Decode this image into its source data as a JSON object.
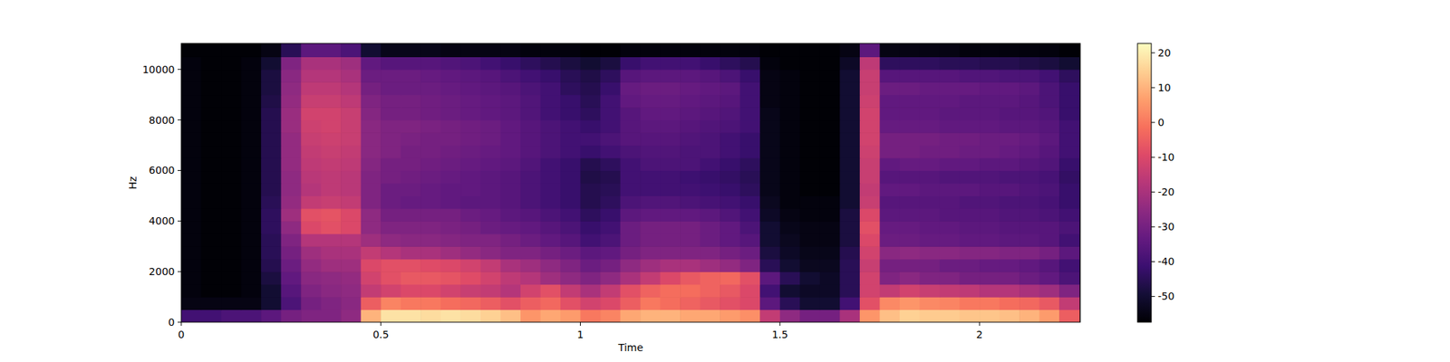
{
  "chart_data": {
    "type": "heatmap",
    "x_label": "Time",
    "y_label": "Hz",
    "xlim": [
      0,
      2.2524
    ],
    "ylim": [
      0,
      11025
    ],
    "xticks": [
      0,
      0.5,
      1,
      1.5,
      2
    ],
    "yticks": [
      0,
      2000,
      4000,
      6000,
      8000,
      10000
    ],
    "colorbar_range": [
      -57.4,
      22.7
    ],
    "colorbar_ticks": [
      -50,
      -40,
      -30,
      -20,
      -10,
      0,
      10,
      20
    ],
    "x_edges": [
      0,
      0.05,
      0.1,
      0.15,
      0.2,
      0.25,
      0.3,
      0.35,
      0.4,
      0.45,
      0.5,
      0.55,
      0.6,
      0.65,
      0.7,
      0.75,
      0.8,
      0.85,
      0.9,
      0.95,
      1,
      1.05,
      1.1,
      1.15,
      1.2,
      1.25,
      1.3,
      1.35,
      1.4,
      1.45,
      1.5,
      1.55,
      1.6,
      1.65,
      1.7,
      1.75,
      1.8,
      1.85,
      1.9,
      1.95,
      2,
      2.05,
      2.1,
      2.15,
      2.2,
      2.25
    ],
    "y_edges": [
      0,
      500,
      1000,
      1500,
      2000,
      2500,
      3000,
      3500,
      4000,
      4500,
      5000,
      5500,
      6000,
      6500,
      7000,
      7500,
      8000,
      8500,
      9000,
      9500,
      10000,
      10500,
      11025
    ],
    "cells": [
      [
        -40,
        -40,
        -38,
        -38,
        -35,
        -30,
        -28,
        -28,
        -25,
        10,
        18,
        18,
        17,
        18,
        17,
        15,
        12,
        5,
        8,
        6,
        0,
        2,
        8,
        10,
        10,
        8,
        8,
        6,
        4,
        -15,
        -25,
        -30,
        -30,
        -20,
        5,
        12,
        15,
        14,
        14,
        13,
        13,
        12,
        10,
        6,
        -5
      ],
      [
        -55,
        -55,
        -55,
        -55,
        -50,
        -38,
        -30,
        -28,
        -26,
        -5,
        2,
        0,
        0,
        -2,
        -3,
        -5,
        -8,
        -5,
        -3,
        -8,
        -12,
        -10,
        -5,
        0,
        -2,
        -4,
        -6,
        -8,
        -10,
        -35,
        -45,
        -50,
        -50,
        -40,
        -8,
        3,
        5,
        3,
        2,
        0,
        0,
        -2,
        -3,
        -6,
        -15
      ],
      [
        -56,
        -57,
        -57,
        -56,
        -50,
        -36,
        -28,
        -26,
        -25,
        -15,
        -12,
        -10,
        -10,
        -12,
        -14,
        -15,
        -18,
        -12,
        -8,
        -15,
        -20,
        -15,
        -8,
        -4,
        -2,
        -2,
        -4,
        -6,
        -10,
        -40,
        -50,
        -52,
        -52,
        -45,
        -12,
        -15,
        -12,
        -14,
        -15,
        -16,
        -18,
        -18,
        -20,
        -22,
        -28
      ],
      [
        -56,
        -57,
        -57,
        -56,
        -48,
        -34,
        -26,
        -25,
        -24,
        -12,
        -8,
        -6,
        -6,
        -7,
        -9,
        -12,
        -16,
        -18,
        -22,
        -25,
        -28,
        -25,
        -20,
        -15,
        -10,
        -6,
        -4,
        -3,
        -8,
        -35,
        -45,
        -50,
        -52,
        -45,
        -12,
        -28,
        -26,
        -28,
        -28,
        -30,
        -30,
        -30,
        -32,
        -34,
        -38
      ],
      [
        -56,
        -57,
        -57,
        -56,
        -46,
        -32,
        -24,
        -22,
        -22,
        -10,
        -8,
        -8,
        -9,
        -10,
        -12,
        -15,
        -20,
        -22,
        -25,
        -28,
        -32,
        -30,
        -25,
        -22,
        -20,
        -20,
        -22,
        -24,
        -28,
        -45,
        -50,
        -53,
        -53,
        -45,
        -14,
        -30,
        -30,
        -30,
        -32,
        -32,
        -33,
        -33,
        -34,
        -36,
        -40
      ],
      [
        -56,
        -57,
        -57,
        -56,
        -45,
        -30,
        -22,
        -20,
        -20,
        -15,
        -18,
        -20,
        -20,
        -22,
        -24,
        -26,
        -28,
        -28,
        -30,
        -32,
        -35,
        -34,
        -30,
        -28,
        -28,
        -28,
        -28,
        -30,
        -32,
        -48,
        -52,
        -54,
        -54,
        -46,
        -12,
        -26,
        -25,
        -26,
        -26,
        -27,
        -27,
        -28,
        -28,
        -30,
        -35
      ],
      [
        -56,
        -57,
        -57,
        -56,
        -45,
        -28,
        -18,
        -18,
        -18,
        -22,
        -25,
        -26,
        -26,
        -27,
        -28,
        -28,
        -30,
        -32,
        -34,
        -36,
        -40,
        -38,
        -32,
        -30,
        -30,
        -30,
        -32,
        -34,
        -36,
        -50,
        -53,
        -55,
        -55,
        -48,
        -10,
        -32,
        -32,
        -33,
        -33,
        -34,
        -34,
        -35,
        -35,
        -36,
        -40
      ],
      [
        -56,
        -57,
        -57,
        -56,
        -44,
        -25,
        -10,
        -8,
        -10,
        -25,
        -28,
        -28,
        -28,
        -29,
        -30,
        -32,
        -33,
        -34,
        -36,
        -38,
        -42,
        -40,
        -32,
        -30,
        -30,
        -30,
        -32,
        -34,
        -38,
        -50,
        -54,
        -55,
        -55,
        -48,
        -8,
        -33,
        -33,
        -34,
        -34,
        -35,
        -35,
        -36,
        -36,
        -36,
        -38
      ],
      [
        -56,
        -57,
        -57,
        -56,
        -44,
        -22,
        -8,
        -7,
        -10,
        -25,
        -30,
        -30,
        -30,
        -30,
        -32,
        -33,
        -35,
        -36,
        -38,
        -40,
        -44,
        -42,
        -35,
        -34,
        -34,
        -34,
        -35,
        -37,
        -40,
        -52,
        -55,
        -56,
        -56,
        -48,
        -10,
        -35,
        -35,
        -35,
        -36,
        -36,
        -36,
        -37,
        -37,
        -38,
        -40
      ],
      [
        -56,
        -57,
        -57,
        -56,
        -45,
        -24,
        -15,
        -14,
        -15,
        -28,
        -32,
        -33,
        -33,
        -34,
        -35,
        -35,
        -36,
        -38,
        -40,
        -42,
        -46,
        -44,
        -38,
        -37,
        -37,
        -38,
        -39,
        -40,
        -42,
        -53,
        -56,
        -56,
        -56,
        -50,
        -14,
        -36,
        -36,
        -36,
        -36,
        -37,
        -37,
        -38,
        -38,
        -39,
        -42
      ],
      [
        -56,
        -57,
        -57,
        -56,
        -46,
        -25,
        -18,
        -16,
        -17,
        -28,
        -32,
        -32,
        -33,
        -34,
        -34,
        -35,
        -36,
        -38,
        -40,
        -42,
        -46,
        -45,
        -40,
        -40,
        -40,
        -40,
        -41,
        -42,
        -44,
        -54,
        -56,
        -57,
        -57,
        -50,
        -15,
        -34,
        -34,
        -35,
        -35,
        -35,
        -36,
        -36,
        -37,
        -38,
        -42
      ],
      [
        -56,
        -57,
        -57,
        -56,
        -46,
        -25,
        -17,
        -16,
        -17,
        -28,
        -30,
        -31,
        -32,
        -33,
        -34,
        -35,
        -36,
        -38,
        -40,
        -42,
        -47,
        -46,
        -40,
        -40,
        -40,
        -41,
        -42,
        -43,
        -45,
        -54,
        -56,
        -57,
        -57,
        -50,
        -14,
        -36,
        -36,
        -36,
        -37,
        -37,
        -37,
        -38,
        -38,
        -39,
        -43
      ],
      [
        -56,
        -57,
        -57,
        -56,
        -46,
        -24,
        -16,
        -15,
        -16,
        -27,
        -30,
        -30,
        -31,
        -32,
        -33,
        -34,
        -35,
        -37,
        -40,
        -42,
        -46,
        -44,
        -40,
        -38,
        -38,
        -38,
        -40,
        -42,
        -44,
        -54,
        -56,
        -57,
        -57,
        -50,
        -14,
        -34,
        -33,
        -33,
        -34,
        -34,
        -35,
        -35,
        -36,
        -37,
        -42
      ],
      [
        -56,
        -57,
        -57,
        -56,
        -46,
        -24,
        -15,
        -14,
        -15,
        -26,
        -28,
        -30,
        -30,
        -31,
        -32,
        -33,
        -34,
        -36,
        -38,
        -40,
        -42,
        -40,
        -38,
        -37,
        -37,
        -38,
        -38,
        -40,
        -42,
        -54,
        -56,
        -57,
        -57,
        -50,
        -13,
        -30,
        -30,
        -31,
        -31,
        -32,
        -32,
        -33,
        -34,
        -36,
        -40
      ],
      [
        -56,
        -57,
        -57,
        -56,
        -46,
        -24,
        -14,
        -13,
        -14,
        -26,
        -28,
        -29,
        -30,
        -30,
        -31,
        -32,
        -34,
        -36,
        -38,
        -40,
        -40,
        -38,
        -36,
        -36,
        -36,
        -37,
        -38,
        -40,
        -42,
        -54,
        -56,
        -57,
        -57,
        -50,
        -12,
        -30,
        -30,
        -30,
        -31,
        -31,
        -32,
        -32,
        -33,
        -35,
        -40
      ],
      [
        -56,
        -57,
        -57,
        -56,
        -46,
        -23,
        -13,
        -12,
        -14,
        -26,
        -28,
        -28,
        -29,
        -30,
        -31,
        -32,
        -34,
        -36,
        -38,
        -40,
        -42,
        -40,
        -36,
        -35,
        -35,
        -36,
        -37,
        -38,
        -40,
        -54,
        -56,
        -57,
        -57,
        -50,
        -12,
        -33,
        -33,
        -33,
        -34,
        -34,
        -34,
        -35,
        -35,
        -36,
        -40
      ],
      [
        -56,
        -57,
        -57,
        -56,
        -46,
        -23,
        -12,
        -12,
        -14,
        -27,
        -30,
        -30,
        -31,
        -32,
        -33,
        -34,
        -35,
        -37,
        -40,
        -42,
        -44,
        -40,
        -36,
        -34,
        -34,
        -35,
        -36,
        -37,
        -40,
        -54,
        -56,
        -57,
        -57,
        -50,
        -12,
        -34,
        -34,
        -34,
        -35,
        -35,
        -35,
        -36,
        -36,
        -37,
        -42
      ],
      [
        -56,
        -57,
        -57,
        -56,
        -47,
        -24,
        -14,
        -14,
        -16,
        -28,
        -30,
        -30,
        -31,
        -32,
        -33,
        -34,
        -35,
        -37,
        -40,
        -42,
        -45,
        -40,
        -34,
        -33,
        -33,
        -34,
        -35,
        -36,
        -40,
        -55,
        -56,
        -57,
        -57,
        -50,
        -13,
        -34,
        -34,
        -34,
        -34,
        -35,
        -35,
        -35,
        -36,
        -38,
        -42
      ],
      [
        -56,
        -57,
        -57,
        -56,
        -48,
        -25,
        -16,
        -16,
        -18,
        -30,
        -32,
        -32,
        -32,
        -33,
        -34,
        -35,
        -36,
        -38,
        -40,
        -44,
        -46,
        -42,
        -33,
        -32,
        -32,
        -33,
        -34,
        -35,
        -40,
        -55,
        -56,
        -57,
        -57,
        -50,
        -14,
        -32,
        -32,
        -33,
        -33,
        -33,
        -34,
        -34,
        -35,
        -38,
        -42
      ],
      [
        -56,
        -57,
        -57,
        -56,
        -48,
        -26,
        -18,
        -18,
        -20,
        -32,
        -32,
        -32,
        -33,
        -34,
        -35,
        -36,
        -38,
        -40,
        -42,
        -45,
        -47,
        -44,
        -36,
        -35,
        -35,
        -35,
        -36,
        -38,
        -42,
        -55,
        -56,
        -57,
        -57,
        -50,
        -14,
        -36,
        -36,
        -36,
        -36,
        -37,
        -37,
        -38,
        -38,
        -40,
        -44
      ],
      [
        -56,
        -57,
        -57,
        -56,
        -50,
        -28,
        -20,
        -20,
        -22,
        -34,
        -36,
        -36,
        -36,
        -37,
        -38,
        -40,
        -42,
        -44,
        -46,
        -48,
        -50,
        -48,
        -42,
        -40,
        -40,
        -40,
        -42,
        -44,
        -46,
        -56,
        -57,
        -57,
        -57,
        -52,
        -16,
        -44,
        -44,
        -44,
        -45,
        -45,
        -46,
        -46,
        -47,
        -48,
        -50
      ],
      [
        -57,
        -57,
        -57,
        -57,
        -55,
        -45,
        -35,
        -35,
        -38,
        -50,
        -54,
        -54,
        -54,
        -55,
        -55,
        -55,
        -55,
        -56,
        -56,
        -56,
        -57,
        -57,
        -56,
        -56,
        -56,
        -56,
        -56,
        -56,
        -56,
        -57,
        -57,
        -57,
        -57,
        -55,
        -35,
        -55,
        -55,
        -55,
        -55,
        -56,
        -56,
        -56,
        -56,
        -56,
        -57
      ]
    ]
  }
}
